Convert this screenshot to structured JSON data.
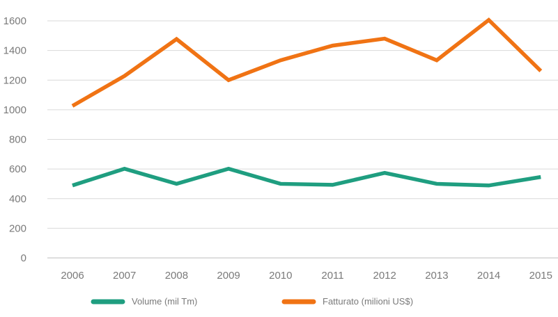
{
  "chart_data": {
    "type": "line",
    "title": "",
    "xlabel": "",
    "ylabel": "",
    "categories": [
      "2006",
      "2007",
      "2008",
      "2009",
      "2010",
      "2011",
      "2012",
      "2013",
      "2014",
      "2015"
    ],
    "ylim": [
      0,
      1600
    ],
    "yticks": [
      "0",
      "200",
      "400",
      "600",
      "800",
      "1000",
      "1200",
      "1400",
      "1600"
    ],
    "grid": true,
    "legend_position": "bottom",
    "series": [
      {
        "name": "Volume (mil Tm)",
        "color": "#1f9e80",
        "values": [
          489,
          602,
          500,
          602,
          500,
          493,
          574,
          500,
          489,
          546
        ]
      },
      {
        "name": "Fatturato (milioni US$)",
        "color": "#f07314",
        "values": [
          1026,
          1228,
          1477,
          1200,
          1334,
          1433,
          1480,
          1334,
          1606,
          1262
        ]
      }
    ]
  }
}
